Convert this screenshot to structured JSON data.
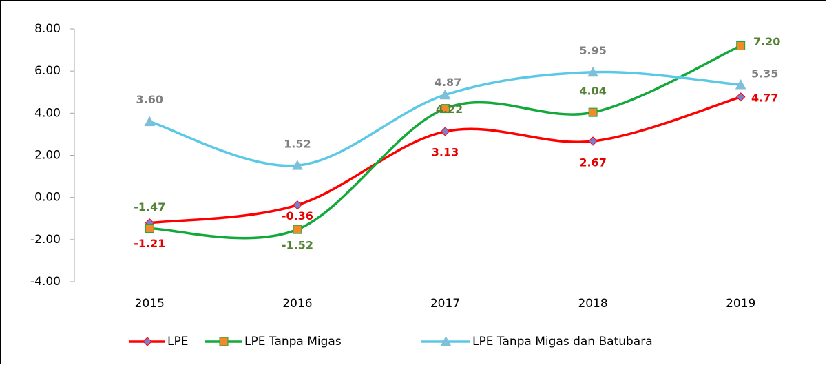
{
  "chart_data": {
    "type": "line",
    "categories": [
      "2015",
      "2016",
      "2017",
      "2018",
      "2019"
    ],
    "series": [
      {
        "name": "LPE",
        "color": "#ff0000",
        "marker": "diamond",
        "marker_color": "#7b7fd0",
        "label_color": "#e60000",
        "values": [
          -1.21,
          -0.36,
          3.13,
          2.67,
          4.77
        ],
        "value_labels": [
          "-1.21",
          "-0.36",
          "3.13",
          "2.67",
          "4.77"
        ]
      },
      {
        "name": "LPE Tanpa Migas",
        "color": "#12a83a",
        "marker": "square",
        "marker_color": "#f28a2c",
        "label_color": "#548235",
        "values": [
          -1.47,
          -1.52,
          4.22,
          4.04,
          7.2
        ],
        "value_labels": [
          "-1.47",
          "-1.52",
          "4.22",
          "4.04",
          "7.20"
        ]
      },
      {
        "name": "LPE Tanpa Migas dan Batubara",
        "color": "#5bc8e6",
        "marker": "triangle",
        "marker_color": "#7fbfd8",
        "label_color": "#808080",
        "values": [
          3.6,
          1.52,
          4.87,
          5.95,
          5.35
        ],
        "value_labels": [
          "3.60",
          "1.52",
          "4.87",
          "5.95",
          "5.35"
        ]
      }
    ],
    "ylim": [
      -4,
      8
    ],
    "yticks": [
      {
        "value": -4,
        "label": "-4.00"
      },
      {
        "value": -2,
        "label": "-2.00"
      },
      {
        "value": 0,
        "label": "0.00"
      },
      {
        "value": 2,
        "label": "2.00"
      },
      {
        "value": 4,
        "label": "4.00"
      },
      {
        "value": 6,
        "label": "6.00"
      },
      {
        "value": 8,
        "label": "8.00"
      }
    ],
    "smooth": true,
    "grid": false,
    "legend": "bottom"
  }
}
